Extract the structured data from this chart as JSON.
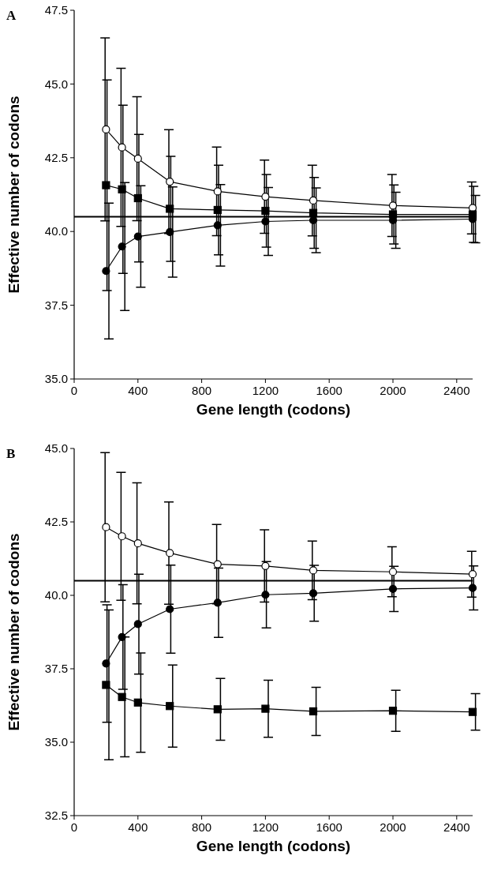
{
  "chart_data": [
    {
      "type": "line",
      "title": "A",
      "xlabel": "Gene length (codons)",
      "ylabel": "Effective number of codons",
      "xlim": [
        0,
        2500
      ],
      "xticks": [
        0,
        400,
        800,
        1200,
        1600,
        2000,
        2400
      ],
      "ylim": [
        35,
        47.5
      ],
      "yticks": [
        {
          "value": 35,
          "label": "35.0"
        },
        {
          "value": 37.5,
          "label": "37.5"
        },
        {
          "value": 40,
          "label": "40.0"
        },
        {
          "value": 42.5,
          "label": "42.5"
        },
        {
          "value": 45,
          "label": "45.0"
        },
        {
          "value": 47.5,
          "label": "47.5"
        }
      ],
      "ref_lines": [
        {
          "axis": "y",
          "value": 40.5,
          "color": "#000000"
        }
      ],
      "series": [
        {
          "x": [
            200,
            300,
            400,
            600,
            900,
            1200,
            1500,
            2000,
            2500
          ],
          "values": [
            43.46,
            42.85,
            42.47,
            41.69,
            41.36,
            41.18,
            41.05,
            40.88,
            40.8
          ],
          "errors": [
            3.1,
            2.68,
            2.1,
            1.76,
            1.5,
            1.24,
            1.2,
            1.05,
            0.88
          ],
          "color": "#ffffff",
          "marker": "circle"
        },
        {
          "x": [
            200,
            300,
            400,
            600,
            900,
            1200,
            1500,
            2000,
            2500
          ],
          "values": [
            41.57,
            41.43,
            41.13,
            40.77,
            40.73,
            40.7,
            40.63,
            40.58,
            40.58
          ],
          "errors": [
            3.57,
            2.85,
            2.16,
            1.78,
            1.52,
            1.23,
            1.2,
            1.0,
            0.95
          ],
          "color": "#000000",
          "marker": "square"
        },
        {
          "x": [
            200,
            300,
            400,
            600,
            900,
            1200,
            1500,
            2000,
            2500
          ],
          "values": [
            38.66,
            39.49,
            39.83,
            39.98,
            40.21,
            40.34,
            40.38,
            40.38,
            40.42
          ],
          "errors": [
            2.3,
            2.17,
            1.72,
            1.53,
            1.38,
            1.15,
            1.1,
            0.95,
            0.8
          ],
          "color": "#000000",
          "marker": "circle"
        }
      ]
    },
    {
      "type": "line",
      "title": "B",
      "xlabel": "Gene length (codons)",
      "ylabel": "Effective number of codons",
      "xlim": [
        0,
        2500
      ],
      "xticks": [
        0,
        400,
        800,
        1200,
        1600,
        2000,
        2400
      ],
      "ylim": [
        32.5,
        45
      ],
      "yticks": [
        {
          "value": 32.5,
          "label": "32.5"
        },
        {
          "value": 35,
          "label": "35.0"
        },
        {
          "value": 37.5,
          "label": "37.5"
        },
        {
          "value": 40,
          "label": "40.0"
        },
        {
          "value": 42.5,
          "label": "42.5"
        },
        {
          "value": 45,
          "label": "45.0"
        }
      ],
      "ref_lines": [
        {
          "axis": "y",
          "value": 40.5,
          "color": "#000000"
        }
      ],
      "series": [
        {
          "x": [
            200,
            300,
            400,
            600,
            900,
            1200,
            1500,
            2000,
            2500
          ],
          "values": [
            42.32,
            42.01,
            41.77,
            41.44,
            41.06,
            41.0,
            40.85,
            40.8,
            40.72
          ],
          "errors": [
            2.54,
            2.18,
            2.06,
            1.74,
            1.35,
            1.23,
            1.0,
            0.85,
            0.78
          ],
          "color": "#ffffff",
          "marker": "circle"
        },
        {
          "x": [
            200,
            300,
            400,
            600,
            900,
            1200,
            1500,
            2000,
            2500
          ],
          "values": [
            37.68,
            38.58,
            39.02,
            39.53,
            39.75,
            40.02,
            40.07,
            40.22,
            40.25
          ],
          "errors": [
            2.0,
            1.78,
            1.7,
            1.5,
            1.18,
            1.13,
            0.95,
            0.77,
            0.75
          ],
          "color": "#000000",
          "marker": "circle"
        },
        {
          "x": [
            200,
            300,
            400,
            600,
            900,
            1200,
            1500,
            2000,
            2500
          ],
          "values": [
            36.95,
            36.54,
            36.35,
            36.23,
            36.12,
            36.14,
            36.05,
            36.07,
            36.03
          ],
          "errors": [
            2.55,
            2.04,
            1.69,
            1.4,
            1.05,
            0.97,
            0.82,
            0.7,
            0.62
          ],
          "color": "#000000",
          "marker": "square"
        }
      ]
    }
  ]
}
